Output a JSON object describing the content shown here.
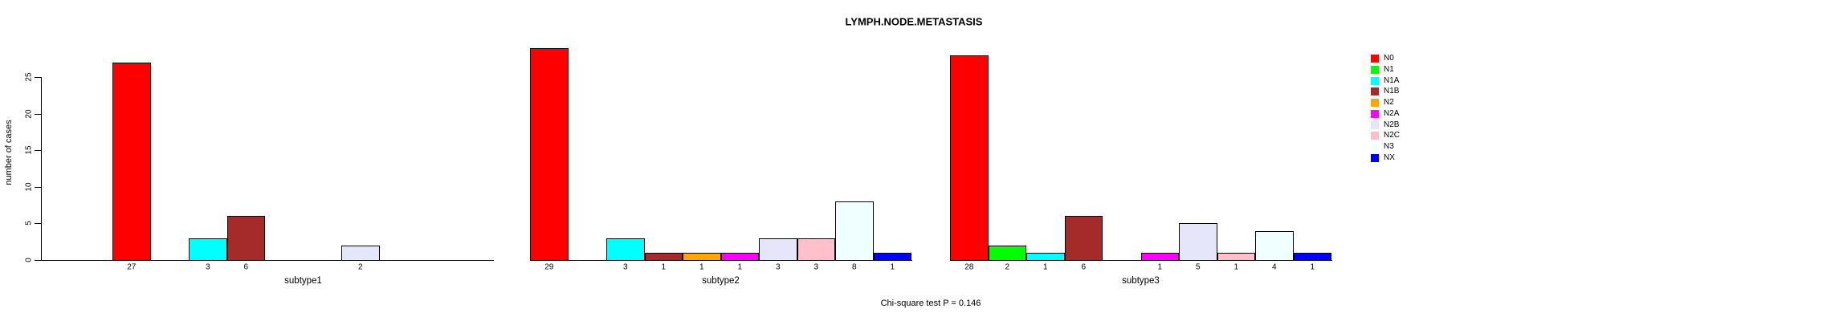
{
  "title": "LYMPH.NODE.METASTASIS",
  "footnote": "Chi-square test P = 0.146",
  "y_axis": {
    "label": "number of cases",
    "ticks": [
      0,
      5,
      10,
      15,
      20,
      25
    ]
  },
  "legend": {
    "position": "right",
    "entries": [
      {
        "label": "N0",
        "color": "#FF0000"
      },
      {
        "label": "N1",
        "color": "#00FF00"
      },
      {
        "label": "N1A",
        "color": "#00FFFF"
      },
      {
        "label": "N1B",
        "color": "#A52A2A"
      },
      {
        "label": "N2",
        "color": "#FFA500"
      },
      {
        "label": "N2A",
        "color": "#FF00FF"
      },
      {
        "label": "N2B",
        "color": "#E6E6FA"
      },
      {
        "label": "N2C",
        "color": "#FFC0CB"
      },
      {
        "label": "N3",
        "color": "#F0FFFF"
      },
      {
        "label": "NX",
        "color": "#0000FF"
      }
    ]
  },
  "chart_data": {
    "type": "bar",
    "title": "LYMPH.NODE.METASTASIS",
    "ylabel": "number of cases",
    "ylim": [
      0,
      29
    ],
    "yticks": [
      0,
      5,
      10,
      15,
      20,
      25
    ],
    "grid": false,
    "legend_position": "right",
    "categories": [
      "N0",
      "N1",
      "N1A",
      "N1B",
      "N2",
      "N2A",
      "N2B",
      "N2C",
      "N3",
      "NX"
    ],
    "colors": [
      "#FF0000",
      "#00FF00",
      "#00FFFF",
      "#A52A2A",
      "#FFA500",
      "#FF00FF",
      "#E6E6FA",
      "#FFC0CB",
      "#F0FFFF",
      "#0000FF"
    ],
    "panels": [
      {
        "xlabel": "subtype1",
        "values": [
          27,
          0,
          3,
          6,
          0,
          0,
          2,
          0,
          0,
          0
        ]
      },
      {
        "xlabel": "subtype2",
        "values": [
          29,
          0,
          3,
          1,
          1,
          1,
          3,
          3,
          8,
          1
        ]
      },
      {
        "xlabel": "subtype3",
        "values": [
          28,
          2,
          1,
          6,
          0,
          1,
          5,
          1,
          4,
          1
        ]
      }
    ],
    "annotation": "Chi-square test P = 0.146",
    "value_labels_shown_for_nonzero_bars_only": true
  }
}
